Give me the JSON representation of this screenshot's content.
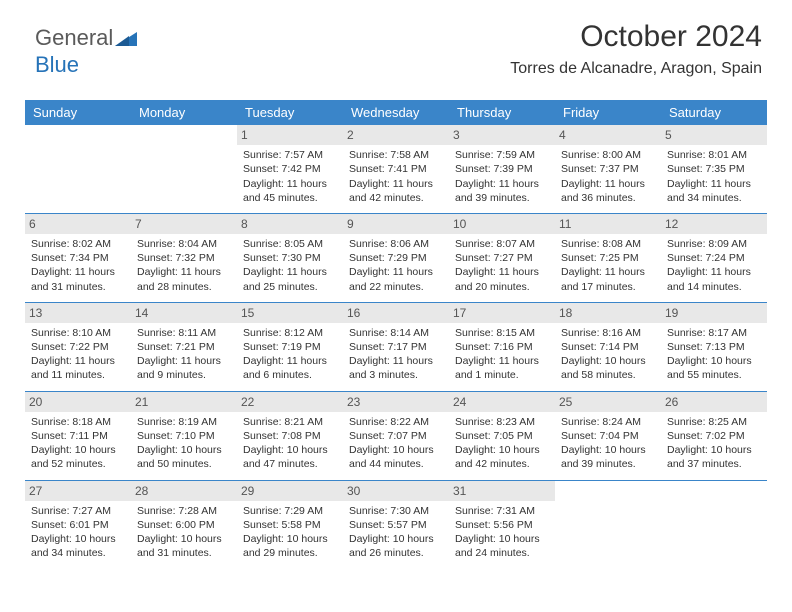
{
  "brand": {
    "part1": "General",
    "part2": "Blue"
  },
  "title": "October 2024",
  "location": "Torres de Alcanadre, Aragon, Spain",
  "colors": {
    "header_bg": "#3a85c9",
    "daynum_bg": "#e8e8e8",
    "text": "#333333"
  },
  "day_names": [
    "Sunday",
    "Monday",
    "Tuesday",
    "Wednesday",
    "Thursday",
    "Friday",
    "Saturday"
  ],
  "weeks": [
    [
      null,
      null,
      {
        "n": "1",
        "sr": "Sunrise: 7:57 AM",
        "ss": "Sunset: 7:42 PM",
        "dl": "Daylight: 11 hours and 45 minutes."
      },
      {
        "n": "2",
        "sr": "Sunrise: 7:58 AM",
        "ss": "Sunset: 7:41 PM",
        "dl": "Daylight: 11 hours and 42 minutes."
      },
      {
        "n": "3",
        "sr": "Sunrise: 7:59 AM",
        "ss": "Sunset: 7:39 PM",
        "dl": "Daylight: 11 hours and 39 minutes."
      },
      {
        "n": "4",
        "sr": "Sunrise: 8:00 AM",
        "ss": "Sunset: 7:37 PM",
        "dl": "Daylight: 11 hours and 36 minutes."
      },
      {
        "n": "5",
        "sr": "Sunrise: 8:01 AM",
        "ss": "Sunset: 7:35 PM",
        "dl": "Daylight: 11 hours and 34 minutes."
      }
    ],
    [
      {
        "n": "6",
        "sr": "Sunrise: 8:02 AM",
        "ss": "Sunset: 7:34 PM",
        "dl": "Daylight: 11 hours and 31 minutes."
      },
      {
        "n": "7",
        "sr": "Sunrise: 8:04 AM",
        "ss": "Sunset: 7:32 PM",
        "dl": "Daylight: 11 hours and 28 minutes."
      },
      {
        "n": "8",
        "sr": "Sunrise: 8:05 AM",
        "ss": "Sunset: 7:30 PM",
        "dl": "Daylight: 11 hours and 25 minutes."
      },
      {
        "n": "9",
        "sr": "Sunrise: 8:06 AM",
        "ss": "Sunset: 7:29 PM",
        "dl": "Daylight: 11 hours and 22 minutes."
      },
      {
        "n": "10",
        "sr": "Sunrise: 8:07 AM",
        "ss": "Sunset: 7:27 PM",
        "dl": "Daylight: 11 hours and 20 minutes."
      },
      {
        "n": "11",
        "sr": "Sunrise: 8:08 AM",
        "ss": "Sunset: 7:25 PM",
        "dl": "Daylight: 11 hours and 17 minutes."
      },
      {
        "n": "12",
        "sr": "Sunrise: 8:09 AM",
        "ss": "Sunset: 7:24 PM",
        "dl": "Daylight: 11 hours and 14 minutes."
      }
    ],
    [
      {
        "n": "13",
        "sr": "Sunrise: 8:10 AM",
        "ss": "Sunset: 7:22 PM",
        "dl": "Daylight: 11 hours and 11 minutes."
      },
      {
        "n": "14",
        "sr": "Sunrise: 8:11 AM",
        "ss": "Sunset: 7:21 PM",
        "dl": "Daylight: 11 hours and 9 minutes."
      },
      {
        "n": "15",
        "sr": "Sunrise: 8:12 AM",
        "ss": "Sunset: 7:19 PM",
        "dl": "Daylight: 11 hours and 6 minutes."
      },
      {
        "n": "16",
        "sr": "Sunrise: 8:14 AM",
        "ss": "Sunset: 7:17 PM",
        "dl": "Daylight: 11 hours and 3 minutes."
      },
      {
        "n": "17",
        "sr": "Sunrise: 8:15 AM",
        "ss": "Sunset: 7:16 PM",
        "dl": "Daylight: 11 hours and 1 minute."
      },
      {
        "n": "18",
        "sr": "Sunrise: 8:16 AM",
        "ss": "Sunset: 7:14 PM",
        "dl": "Daylight: 10 hours and 58 minutes."
      },
      {
        "n": "19",
        "sr": "Sunrise: 8:17 AM",
        "ss": "Sunset: 7:13 PM",
        "dl": "Daylight: 10 hours and 55 minutes."
      }
    ],
    [
      {
        "n": "20",
        "sr": "Sunrise: 8:18 AM",
        "ss": "Sunset: 7:11 PM",
        "dl": "Daylight: 10 hours and 52 minutes."
      },
      {
        "n": "21",
        "sr": "Sunrise: 8:19 AM",
        "ss": "Sunset: 7:10 PM",
        "dl": "Daylight: 10 hours and 50 minutes."
      },
      {
        "n": "22",
        "sr": "Sunrise: 8:21 AM",
        "ss": "Sunset: 7:08 PM",
        "dl": "Daylight: 10 hours and 47 minutes."
      },
      {
        "n": "23",
        "sr": "Sunrise: 8:22 AM",
        "ss": "Sunset: 7:07 PM",
        "dl": "Daylight: 10 hours and 44 minutes."
      },
      {
        "n": "24",
        "sr": "Sunrise: 8:23 AM",
        "ss": "Sunset: 7:05 PM",
        "dl": "Daylight: 10 hours and 42 minutes."
      },
      {
        "n": "25",
        "sr": "Sunrise: 8:24 AM",
        "ss": "Sunset: 7:04 PM",
        "dl": "Daylight: 10 hours and 39 minutes."
      },
      {
        "n": "26",
        "sr": "Sunrise: 8:25 AM",
        "ss": "Sunset: 7:02 PM",
        "dl": "Daylight: 10 hours and 37 minutes."
      }
    ],
    [
      {
        "n": "27",
        "sr": "Sunrise: 7:27 AM",
        "ss": "Sunset: 6:01 PM",
        "dl": "Daylight: 10 hours and 34 minutes."
      },
      {
        "n": "28",
        "sr": "Sunrise: 7:28 AM",
        "ss": "Sunset: 6:00 PM",
        "dl": "Daylight: 10 hours and 31 minutes."
      },
      {
        "n": "29",
        "sr": "Sunrise: 7:29 AM",
        "ss": "Sunset: 5:58 PM",
        "dl": "Daylight: 10 hours and 29 minutes."
      },
      {
        "n": "30",
        "sr": "Sunrise: 7:30 AM",
        "ss": "Sunset: 5:57 PM",
        "dl": "Daylight: 10 hours and 26 minutes."
      },
      {
        "n": "31",
        "sr": "Sunrise: 7:31 AM",
        "ss": "Sunset: 5:56 PM",
        "dl": "Daylight: 10 hours and 24 minutes."
      },
      null,
      null
    ]
  ]
}
